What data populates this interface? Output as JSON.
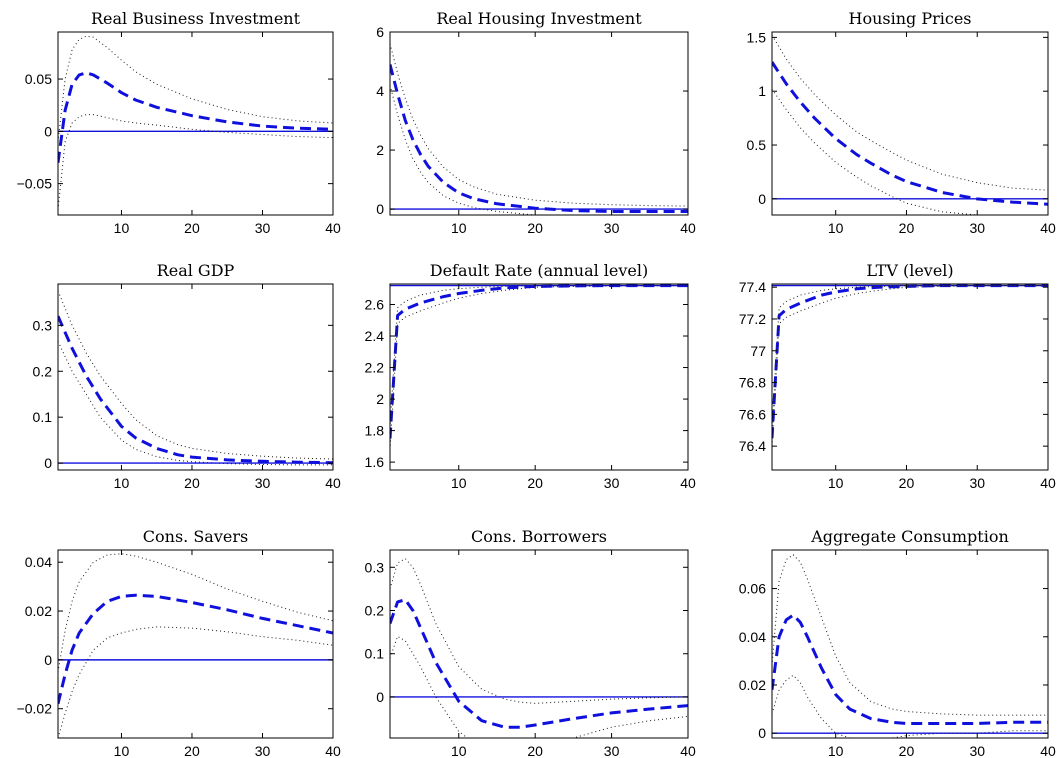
{
  "colors": {
    "mean": "#1010dd",
    "band": "#1a1a1a",
    "steady_state": "#1010dd"
  },
  "chart_data": [
    {
      "type": "line",
      "title": "Real Business Investment",
      "xlim": [
        1,
        40
      ],
      "ylim": [
        -0.08,
        0.095
      ],
      "xticks": [
        10,
        20,
        30,
        40
      ],
      "xtick_labels": [
        "10",
        "20",
        "30",
        "40"
      ],
      "yticks": [
        -0.05,
        0,
        0.05
      ],
      "ytick_labels": [
        "−0.05",
        "0",
        "0.05"
      ],
      "steady_state": 0,
      "x": [
        1,
        2,
        3,
        4,
        5,
        6,
        8,
        10,
        12,
        15,
        20,
        25,
        30,
        35,
        40
      ],
      "series": [
        {
          "role": "median",
          "values": [
            -0.03,
            0.02,
            0.045,
            0.054,
            0.056,
            0.054,
            0.046,
            0.037,
            0.03,
            0.023,
            0.015,
            0.009,
            0.005,
            0.003,
            0.002
          ]
        },
        {
          "role": "upper",
          "values": [
            -0.01,
            0.05,
            0.078,
            0.088,
            0.091,
            0.09,
            0.08,
            0.068,
            0.057,
            0.045,
            0.031,
            0.021,
            0.014,
            0.01,
            0.008
          ]
        },
        {
          "role": "lower",
          "values": [
            -0.075,
            -0.01,
            0.008,
            0.014,
            0.016,
            0.016,
            0.013,
            0.01,
            0.008,
            0.006,
            0.002,
            -0.001,
            -0.003,
            -0.005,
            -0.006
          ]
        }
      ]
    },
    {
      "type": "line",
      "title": "Real Housing Investment",
      "xlim": [
        1,
        40
      ],
      "ylim": [
        -0.2,
        6
      ],
      "xticks": [
        10,
        20,
        30,
        40
      ],
      "xtick_labels": [
        "10",
        "20",
        "30",
        "40"
      ],
      "yticks": [
        0,
        2,
        4,
        6
      ],
      "ytick_labels": [
        "0",
        "2",
        "4",
        "6"
      ],
      "steady_state": 0,
      "x": [
        1,
        2,
        3,
        4,
        5,
        6,
        8,
        10,
        12,
        15,
        20,
        25,
        30,
        35,
        40
      ],
      "series": [
        {
          "role": "median",
          "values": [
            4.9,
            3.9,
            3.0,
            2.35,
            1.85,
            1.45,
            0.9,
            0.55,
            0.35,
            0.18,
            0.03,
            -0.05,
            -0.08,
            -0.08,
            -0.08
          ]
        },
        {
          "role": "upper",
          "values": [
            5.6,
            4.6,
            3.75,
            3.05,
            2.5,
            2.05,
            1.42,
            1.0,
            0.75,
            0.5,
            0.3,
            0.2,
            0.15,
            0.12,
            0.1
          ]
        },
        {
          "role": "lower",
          "values": [
            4.2,
            3.2,
            2.35,
            1.7,
            1.25,
            0.9,
            0.45,
            0.2,
            0.05,
            -0.08,
            -0.2,
            -0.25,
            -0.25,
            -0.24,
            -0.22
          ]
        }
      ]
    },
    {
      "type": "line",
      "title": "Housing Prices",
      "xlim": [
        1,
        40
      ],
      "ylim": [
        -0.15,
        1.55
      ],
      "xticks": [
        10,
        20,
        30,
        40
      ],
      "xtick_labels": [
        "10",
        "20",
        "30",
        "40"
      ],
      "yticks": [
        0,
        0.5,
        1,
        1.5
      ],
      "ytick_labels": [
        "0",
        "0.5",
        "1",
        "1.5"
      ],
      "steady_state": 0,
      "x": [
        1,
        3,
        5,
        7,
        10,
        13,
        15,
        18,
        20,
        25,
        30,
        35,
        40
      ],
      "series": [
        {
          "role": "median",
          "values": [
            1.27,
            1.07,
            0.9,
            0.75,
            0.56,
            0.41,
            0.33,
            0.22,
            0.16,
            0.06,
            0.0,
            -0.03,
            -0.05
          ]
        },
        {
          "role": "upper",
          "values": [
            1.52,
            1.3,
            1.12,
            0.97,
            0.78,
            0.62,
            0.54,
            0.43,
            0.36,
            0.23,
            0.15,
            0.1,
            0.08
          ]
        },
        {
          "role": "lower",
          "values": [
            1.02,
            0.83,
            0.66,
            0.52,
            0.34,
            0.2,
            0.12,
            0.02,
            -0.04,
            -0.12,
            -0.15,
            -0.16,
            -0.16
          ]
        }
      ]
    },
    {
      "type": "line",
      "title": "Real GDP",
      "xlim": [
        1,
        40
      ],
      "ylim": [
        -0.015,
        0.39
      ],
      "xticks": [
        10,
        20,
        30,
        40
      ],
      "xtick_labels": [
        "10",
        "20",
        "30",
        "40"
      ],
      "yticks": [
        0,
        0.1,
        0.2,
        0.3
      ],
      "ytick_labels": [
        "0",
        "0.1",
        "0.2",
        "0.3"
      ],
      "steady_state": 0,
      "x": [
        1,
        3,
        5,
        7,
        10,
        12,
        15,
        18,
        20,
        25,
        30,
        35,
        40
      ],
      "series": [
        {
          "role": "median",
          "values": [
            0.32,
            0.25,
            0.19,
            0.14,
            0.08,
            0.055,
            0.032,
            0.018,
            0.013,
            0.007,
            0.004,
            0.002,
            0.001
          ]
        },
        {
          "role": "upper",
          "values": [
            0.375,
            0.3,
            0.24,
            0.19,
            0.13,
            0.095,
            0.06,
            0.04,
            0.032,
            0.021,
            0.015,
            0.011,
            0.009
          ]
        },
        {
          "role": "lower",
          "values": [
            0.265,
            0.2,
            0.15,
            0.1,
            0.05,
            0.03,
            0.014,
            0.006,
            0.003,
            -0.001,
            -0.003,
            -0.004,
            -0.004
          ]
        }
      ]
    },
    {
      "type": "line",
      "title": "Default Rate (annual level)",
      "xlim": [
        1,
        40
      ],
      "ylim": [
        1.55,
        2.73
      ],
      "xticks": [
        10,
        20,
        30,
        40
      ],
      "xtick_labels": [
        "10",
        "20",
        "30",
        "40"
      ],
      "yticks": [
        1.6,
        1.8,
        2,
        2.2,
        2.4,
        2.6
      ],
      "ytick_labels": [
        "1.6",
        "1.8",
        "2",
        "2.2",
        "2.4",
        "2.6"
      ],
      "steady_state": 2.72,
      "x": [
        1,
        2,
        3,
        5,
        8,
        10,
        13,
        16,
        20,
        25,
        30,
        40
      ],
      "series": [
        {
          "role": "median",
          "values": [
            1.75,
            2.53,
            2.57,
            2.61,
            2.65,
            2.67,
            2.69,
            2.705,
            2.715,
            2.718,
            2.72,
            2.72
          ]
        },
        {
          "role": "upper",
          "values": [
            1.82,
            2.58,
            2.62,
            2.66,
            2.69,
            2.7,
            2.71,
            2.715,
            2.72,
            2.72,
            2.72,
            2.72
          ]
        },
        {
          "role": "lower",
          "values": [
            1.68,
            2.48,
            2.52,
            2.56,
            2.61,
            2.64,
            2.67,
            2.69,
            2.71,
            2.715,
            2.718,
            2.72
          ]
        }
      ]
    },
    {
      "type": "line",
      "title": "LTV (level)",
      "xlim": [
        1,
        40
      ],
      "ylim": [
        76.25,
        77.42
      ],
      "xticks": [
        10,
        20,
        30,
        40
      ],
      "xtick_labels": [
        "10",
        "20",
        "30",
        "40"
      ],
      "yticks": [
        76.4,
        76.6,
        76.8,
        77,
        77.2,
        77.4
      ],
      "ytick_labels": [
        "76.4",
        "76.6",
        "76.8",
        "77",
        "77.2",
        "77.4"
      ],
      "steady_state": 77.41,
      "x": [
        1,
        2,
        3,
        5,
        8,
        10,
        13,
        16,
        20,
        25,
        30,
        40
      ],
      "series": [
        {
          "role": "median",
          "values": [
            76.45,
            77.22,
            77.26,
            77.3,
            77.35,
            77.37,
            77.39,
            77.4,
            77.405,
            77.41,
            77.41,
            77.41
          ]
        },
        {
          "role": "upper",
          "values": [
            76.5,
            77.27,
            77.31,
            77.35,
            77.38,
            77.39,
            77.4,
            77.405,
            77.41,
            77.41,
            77.41,
            77.41
          ]
        },
        {
          "role": "lower",
          "values": [
            76.4,
            77.17,
            77.21,
            77.25,
            77.3,
            77.33,
            77.36,
            77.38,
            77.4,
            77.405,
            77.41,
            77.41
          ]
        }
      ]
    },
    {
      "type": "line",
      "title": "Cons. Savers",
      "xlim": [
        1,
        40
      ],
      "ylim": [
        -0.032,
        0.045
      ],
      "xticks": [
        10,
        20,
        30,
        40
      ],
      "xtick_labels": [
        "10",
        "20",
        "30",
        "40"
      ],
      "yticks": [
        -0.02,
        0,
        0.02,
        0.04
      ],
      "ytick_labels": [
        "−0.02",
        "0",
        "0.02",
        "0.04"
      ],
      "steady_state": 0,
      "x": [
        1,
        2,
        3,
        4,
        6,
        8,
        10,
        12,
        15,
        20,
        25,
        30,
        35,
        40
      ],
      "series": [
        {
          "role": "median",
          "values": [
            -0.018,
            -0.006,
            0.004,
            0.011,
            0.019,
            0.024,
            0.026,
            0.0265,
            0.026,
            0.0235,
            0.0205,
            0.017,
            0.014,
            0.011
          ]
        },
        {
          "role": "upper",
          "values": [
            -0.005,
            0.012,
            0.024,
            0.032,
            0.04,
            0.043,
            0.0435,
            0.0425,
            0.04,
            0.035,
            0.029,
            0.024,
            0.0195,
            0.016
          ]
        },
        {
          "role": "lower",
          "values": [
            -0.032,
            -0.022,
            -0.013,
            -0.006,
            0.004,
            0.009,
            0.011,
            0.0125,
            0.0135,
            0.013,
            0.0115,
            0.0095,
            0.008,
            0.006
          ]
        }
      ]
    },
    {
      "type": "line",
      "title": "Cons. Borrowers",
      "xlim": [
        1,
        40
      ],
      "ylim": [
        -0.095,
        0.34
      ],
      "xticks": [
        10,
        20,
        30,
        40
      ],
      "xtick_labels": [
        "10",
        "20",
        "30",
        "40"
      ],
      "yticks": [
        0,
        0.1,
        0.2,
        0.3
      ],
      "ytick_labels": [
        "0",
        "0.1",
        "0.2",
        "0.3"
      ],
      "steady_state": 0,
      "x": [
        1,
        2,
        3,
        4,
        5,
        7,
        10,
        13,
        16,
        18,
        20,
        25,
        30,
        35,
        40
      ],
      "series": [
        {
          "role": "median",
          "values": [
            0.17,
            0.22,
            0.225,
            0.2,
            0.16,
            0.08,
            -0.01,
            -0.055,
            -0.07,
            -0.07,
            -0.065,
            -0.05,
            -0.037,
            -0.028,
            -0.02
          ]
        },
        {
          "role": "upper",
          "values": [
            0.25,
            0.31,
            0.32,
            0.3,
            0.26,
            0.17,
            0.07,
            0.018,
            -0.005,
            -0.012,
            -0.015,
            -0.01,
            -0.005,
            -0.002,
            0.0
          ]
        },
        {
          "role": "lower",
          "values": [
            0.09,
            0.14,
            0.13,
            0.1,
            0.07,
            0.0,
            -0.08,
            -0.12,
            -0.135,
            -0.135,
            -0.125,
            -0.095,
            -0.07,
            -0.055,
            -0.045
          ]
        }
      ]
    },
    {
      "type": "line",
      "title": "Aggregate Consumption",
      "xlim": [
        1,
        40
      ],
      "ylim": [
        -0.002,
        0.076
      ],
      "xticks": [
        10,
        20,
        30,
        40
      ],
      "xtick_labels": [
        "10",
        "20",
        "30",
        "40"
      ],
      "yticks": [
        0,
        0.02,
        0.04,
        0.06
      ],
      "ytick_labels": [
        "0",
        "0.02",
        "0.04",
        "0.06"
      ],
      "steady_state": 0,
      "x": [
        1,
        2,
        3,
        4,
        5,
        6,
        8,
        10,
        12,
        15,
        18,
        20,
        25,
        30,
        35,
        40
      ],
      "series": [
        {
          "role": "median",
          "values": [
            0.018,
            0.04,
            0.047,
            0.049,
            0.046,
            0.04,
            0.027,
            0.016,
            0.01,
            0.006,
            0.0045,
            0.004,
            0.004,
            0.004,
            0.0045,
            0.0045
          ]
        },
        {
          "role": "upper",
          "values": [
            0.028,
            0.063,
            0.072,
            0.074,
            0.071,
            0.064,
            0.048,
            0.032,
            0.021,
            0.013,
            0.01,
            0.009,
            0.008,
            0.0075,
            0.0075,
            0.0075
          ]
        },
        {
          "role": "lower",
          "values": [
            0.008,
            0.018,
            0.022,
            0.024,
            0.021,
            0.015,
            0.006,
            0.0,
            -0.002,
            -0.002,
            -0.002,
            -0.001,
            0.0,
            0.0,
            0.001,
            0.001
          ]
        }
      ]
    }
  ]
}
